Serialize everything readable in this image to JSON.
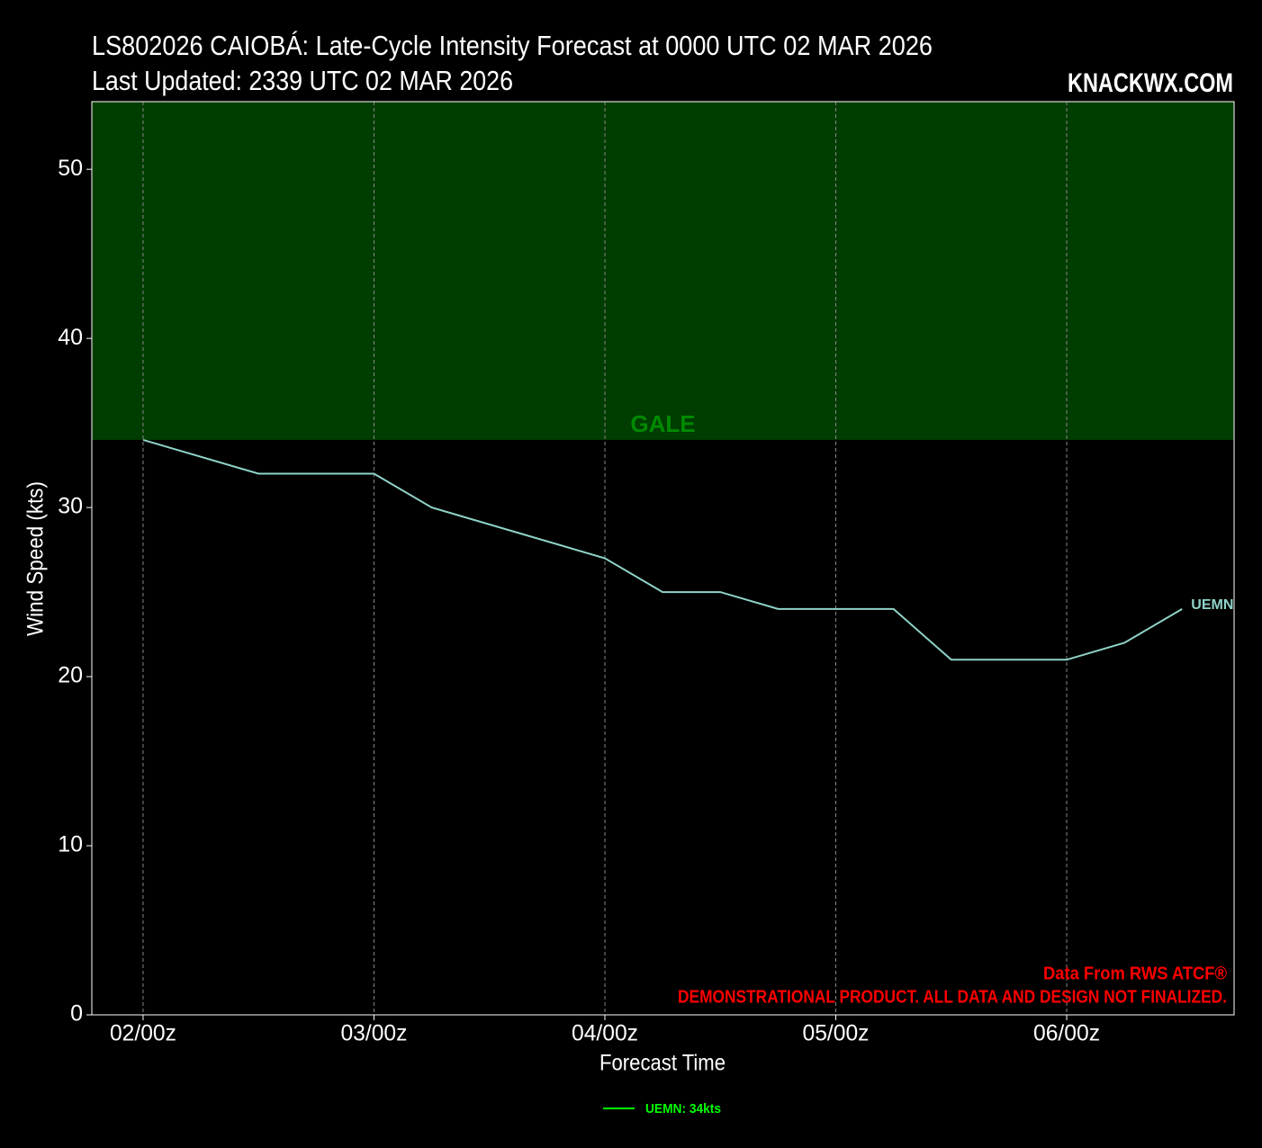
{
  "chart_data": {
    "type": "line",
    "title": "LS802026 CAIOBÁ: Late-Cycle Intensity Forecast at 0000 UTC 02 MAR 2026",
    "subtitle": "Last Updated: 2339 UTC 02 MAR 2026",
    "watermark": "KNACKWX.COM",
    "xlabel": "Forecast Time",
    "ylabel": "Wind Speed (kts)",
    "x": [
      0,
      12,
      24,
      30,
      48,
      54,
      60,
      66,
      78,
      84,
      96,
      102,
      108
    ],
    "series": [
      {
        "name": "UEMN",
        "color": "#8fd3c9",
        "values": [
          34,
          32,
          32,
          30,
          27,
          25,
          25,
          24,
          24,
          21,
          21,
          22,
          24
        ]
      }
    ],
    "legend_label": "UEMN: 34kts",
    "legend_color": "#00ff00",
    "threshold": {
      "label": "GALE",
      "value": 34,
      "color": "#003d00",
      "label_color": "#008a00"
    },
    "annotations": [
      "Data From RWS ATCF®",
      "DEMONSTRATIONAL PRODUCT. ALL DATA AND DESIGN NOT FINALIZED."
    ],
    "annotation_color": "#ff0000",
    "xlim": [
      -5.33,
      113.4
    ],
    "ylim": [
      0,
      54
    ],
    "xticks": [
      {
        "value": 0,
        "label": "02/00z"
      },
      {
        "value": 24,
        "label": "03/00z"
      },
      {
        "value": 48,
        "label": "04/00z"
      },
      {
        "value": 72,
        "label": "05/00z"
      },
      {
        "value": 96,
        "label": "06/00z"
      }
    ],
    "yticks": [
      0,
      10,
      20,
      30,
      40,
      50
    ],
    "grid": "x"
  }
}
